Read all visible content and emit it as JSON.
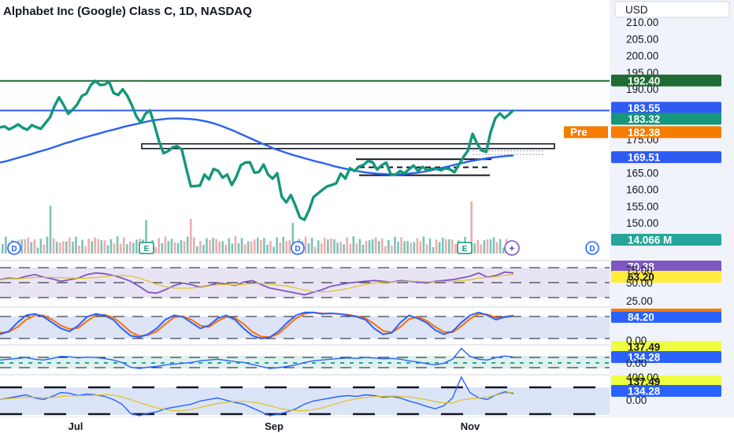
{
  "header": {
    "title": "Alphabet Inc (Google) Class C, 1D, NASDAQ",
    "currency": "USD"
  },
  "colors": {
    "price_line": "#14977a",
    "ma_line": "#2a62f0",
    "resistance_line": "#1e6b33",
    "support_line": "#2f5bf5",
    "volume_up": "#66b7ac",
    "volume_down": "#e7a0a0",
    "rsi_line": "#7e57c2",
    "stoch_k": "#2962ff",
    "stoch_d": "#ff6d00",
    "pane_fill": "#c7cde4",
    "panel_bg": "#f0f3fa"
  },
  "chart_data": {
    "type": "line",
    "y_axis_ticks": [
      "210.00",
      "205.00",
      "200.00",
      "195.00",
      "190.00",
      "175.00",
      "165.00",
      "160.00",
      "155.00",
      "150.00"
    ],
    "ylim": [
      148,
      212
    ],
    "x_axis_labels": [
      "Jul",
      "Sep",
      "Nov"
    ],
    "series": [
      {
        "type": "line",
        "values": [
          178.5,
          178.8,
          177.9,
          178.6,
          179.4,
          178.4,
          177.8,
          179.2,
          178.6,
          178.1,
          179.8,
          181.5,
          184.9,
          187.5,
          185.2,
          182.6,
          183.8,
          185.4,
          187.9,
          188.6,
          191.2,
          192.4,
          191.2,
          191.3,
          192.2,
          188.8,
          188.2,
          189.9,
          188.0,
          185.2,
          181.8,
          179.9,
          182.6,
          183.6,
          179.2,
          174.4,
          170.8,
          171.4,
          172.6,
          172.9,
          171.9,
          166.2,
          160.9,
          161.0,
          161.1,
          164.4,
          163.0,
          166.1,
          165.5,
          163.5,
          164.4,
          161.3,
          163.7,
          167.2,
          168.0,
          168.1,
          165.0,
          165.2,
          167.4,
          164.4,
          163.2,
          164.8,
          157.8,
          156.1,
          158.3,
          155.2,
          151.6,
          150.9,
          153.8,
          157.7,
          158.8,
          159.9,
          160.9,
          161.3,
          161.8,
          164.7,
          163.2,
          166.3,
          165.5,
          166.8,
          167.3,
          168.5,
          168.1,
          165.9,
          167.2,
          168.0,
          164.5,
          164.3,
          165.5,
          164.8,
          166.0,
          167.1,
          165.5,
          166.7,
          165.7,
          166.1,
          166.2,
          165.7,
          166.3,
          166.0,
          165.1,
          167.4,
          169.7,
          171.6,
          176.6,
          173.6,
          171.6,
          171.2,
          177.3,
          181.2,
          182.7,
          181.3,
          182.4,
          183.7
        ]
      },
      {
        "type": "line",
        "values": [
          168.0,
          168.4,
          168.9,
          169.4,
          169.9,
          170.4,
          171.0,
          171.5,
          172.0,
          172.6,
          173.2,
          173.8,
          174.3,
          174.9,
          175.4,
          175.9,
          176.4,
          176.9,
          177.4,
          177.8,
          178.3,
          178.8,
          179.2,
          179.6,
          180.0,
          180.4,
          180.7,
          180.9,
          181.1,
          181.2,
          181.2,
          181.1,
          181.0,
          180.8,
          180.5,
          180.1,
          179.6,
          179.0,
          178.3,
          177.6,
          176.8,
          176.0,
          175.2,
          174.4,
          173.6,
          172.9,
          172.1,
          171.5,
          170.9,
          170.3,
          169.8,
          169.3,
          168.8,
          168.3,
          167.9,
          167.4,
          166.9,
          166.5,
          166.1,
          165.7,
          165.4,
          165.1,
          164.9,
          164.7,
          164.6,
          164.5,
          164.5,
          164.5,
          164.6,
          164.8,
          165.0,
          165.3,
          165.6,
          166.0,
          166.4,
          166.8,
          167.3,
          167.7,
          168.1,
          168.5,
          168.8,
          169.1,
          169.4,
          169.6,
          169.8,
          170.0,
          170.1
        ]
      }
    ],
    "price_tags": [
      "192.40",
      "183.55",
      "183.32",
      "182.38",
      "169.51",
      "14.066 M"
    ],
    "pre_label": "Pre",
    "event_markers": [
      "D",
      "E",
      "D",
      "E",
      "D"
    ],
    "indicators": {
      "rsi": {
        "tick_labels": [
          "75.00",
          "50.00",
          "25.00"
        ],
        "tags": [
          "70.38",
          "63.20"
        ],
        "values": [
          62.0,
          64.0,
          63.0,
          66.0,
          68.0,
          65.0,
          63.0,
          60.0,
          62.0,
          64.0,
          68.0,
          70.0,
          69.0,
          67.0,
          64.0,
          60.0,
          54.0,
          47.0,
          46.0,
          50.0,
          55.0,
          58.0,
          56.0,
          53.0,
          55.0,
          58.0,
          57.0,
          55.0,
          59.0,
          61.0,
          56.0,
          52.0,
          50.0,
          48.0,
          46.0,
          44.0,
          47.0,
          50.0,
          54.0,
          56.0,
          58.0,
          59.0,
          60.0,
          61.0,
          60.0,
          59.0,
          61.0,
          60.0,
          59.0,
          58.0,
          60.0,
          61.0,
          62.0,
          64.0,
          66.0,
          70.0,
          65.0,
          67.0,
          71.0,
          70.0
        ]
      },
      "stochastic": {
        "tick_labels": [
          "0.00"
        ],
        "tag": "84.20",
        "k_values": [
          20.0,
          30.0,
          60.0,
          85.0,
          90.0,
          80.0,
          60.0,
          40.0,
          30.0,
          50.0,
          80.0,
          90.0,
          85.0,
          70.0,
          40.0,
          15.0,
          10.0,
          20.0,
          40.0,
          70.0,
          85.0,
          80.0,
          60.0,
          40.0,
          50.0,
          75.0,
          85.0,
          70.0,
          40.0,
          15.0,
          5.0,
          10.0,
          30.0,
          60.0,
          85.0,
          95.0,
          95.0,
          90.0,
          92.0,
          90.0,
          85.0,
          80.0,
          70.0,
          40.0,
          20.0,
          25.0,
          60.0,
          85.0,
          75.0,
          60.0,
          35.0,
          20.0,
          30.0,
          60.0,
          85.0,
          95.0,
          85.0,
          70.0,
          80.0,
          84.0
        ],
        "d_values": [
          25.0,
          28.0,
          45.0,
          70.0,
          85.0,
          85.0,
          70.0,
          50.0,
          38.0,
          42.0,
          65.0,
          85.0,
          87.0,
          78.0,
          55.0,
          28.0,
          14.0,
          17.0,
          30.0,
          55.0,
          78.0,
          82.0,
          70.0,
          50.0,
          45.0,
          65.0,
          80.0,
          76.0,
          55.0,
          28.0,
          12.0,
          10.0,
          22.0,
          48.0,
          75.0,
          90.0,
          95.0,
          92.0,
          91.0,
          90.0,
          87.0,
          82.0,
          75.0,
          55.0,
          32.0,
          26.0,
          45.0,
          72.0,
          80.0,
          67.0,
          46.0,
          28.0,
          27.0,
          47.0,
          73.0,
          90.0,
          88.0,
          77.0,
          78.0,
          82.0
        ]
      },
      "cci": {
        "tick_labels": [
          "0.00"
        ],
        "tags": [
          "137.49",
          "134.28"
        ]
      },
      "cci2": {
        "tick_labels": [
          "400.00",
          "0.00"
        ],
        "tags": [
          "137.49",
          "134.28"
        ],
        "values": [
          60.0,
          80.0,
          100.0,
          120.0,
          80.0,
          60.0,
          100.0,
          150.0,
          140.0,
          110.0,
          130.0,
          120.0,
          100.0,
          60.0,
          0.0,
          -120.0,
          -150.0,
          -120.0,
          -100.0,
          -60.0,
          -40.0,
          -20.0,
          0.0,
          40.0,
          60.0,
          80.0,
          50.0,
          20.0,
          0.0,
          -50.0,
          -100.0,
          -150.0,
          -130.0,
          -100.0,
          -60.0,
          0.0,
          40.0,
          60.0,
          80.0,
          100.0,
          110.0,
          100.0,
          120.0,
          110.0,
          90.0,
          100.0,
          80.0,
          40.0,
          10.0,
          -30.0,
          -60.0,
          -20.0,
          80.0,
          350.0,
          150.0,
          80.0,
          60.0,
          120.0,
          160.0,
          137.0
        ]
      }
    }
  }
}
